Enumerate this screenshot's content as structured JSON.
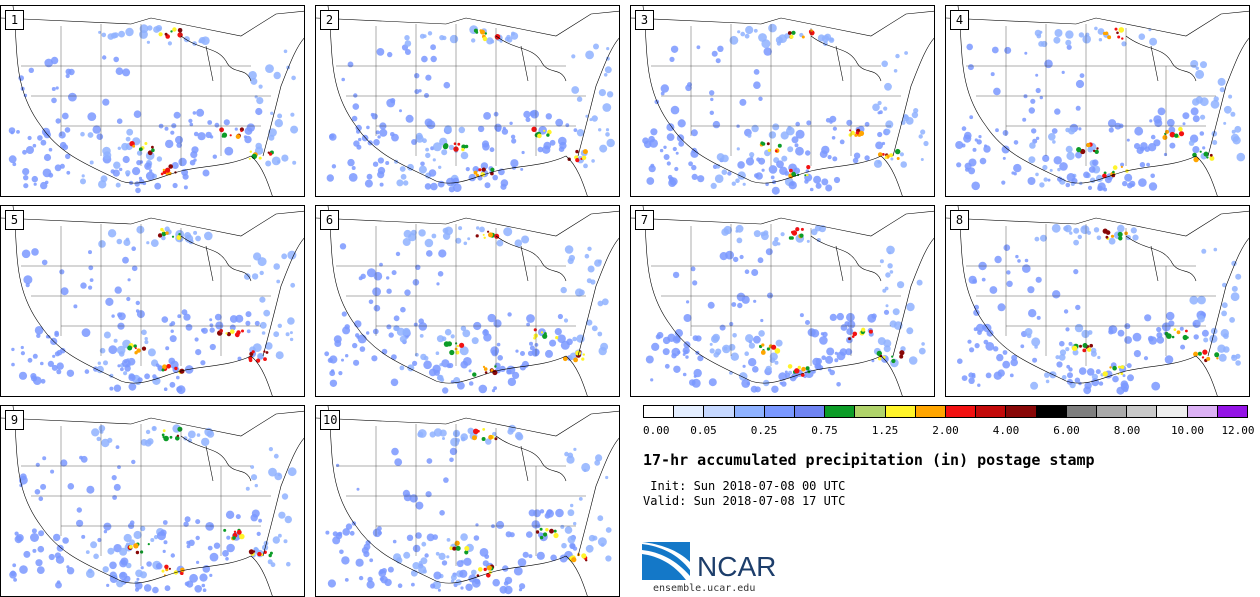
{
  "panels": [
    {
      "number": "1"
    },
    {
      "number": "2"
    },
    {
      "number": "3"
    },
    {
      "number": "4"
    },
    {
      "number": "5"
    },
    {
      "number": "6"
    },
    {
      "number": "7"
    },
    {
      "number": "8"
    },
    {
      "number": "9"
    },
    {
      "number": "10"
    }
  ],
  "colorbar": {
    "colors": [
      "#ffffff",
      "#e4eeff",
      "#c6d8ff",
      "#8fb2ff",
      "#7a98ff",
      "#6f84f2",
      "#0c9c27",
      "#b0d36a",
      "#fff42a",
      "#ffa500",
      "#f21111",
      "#c30a0a",
      "#880707",
      "#000000",
      "#7e7e7e",
      "#a9a9a9",
      "#c9c9c9",
      "#eeeeee",
      "#dcb1f5",
      "#9414e6"
    ],
    "tick_labels": [
      "0.00",
      "0.05",
      "0.25",
      "0.75",
      "1.25",
      "2.00",
      "4.00",
      "6.00",
      "8.00",
      "10.00",
      "12.00"
    ]
  },
  "title": "17-hr accumulated precipitation (in) postage stamp",
  "init_line": " Init: Sun 2018-07-08 00 UTC",
  "valid_line": "Valid: Sun 2018-07-08 17 UTC",
  "logo": {
    "text": "NCAR",
    "url": "ensemble.ucar.edu"
  }
}
